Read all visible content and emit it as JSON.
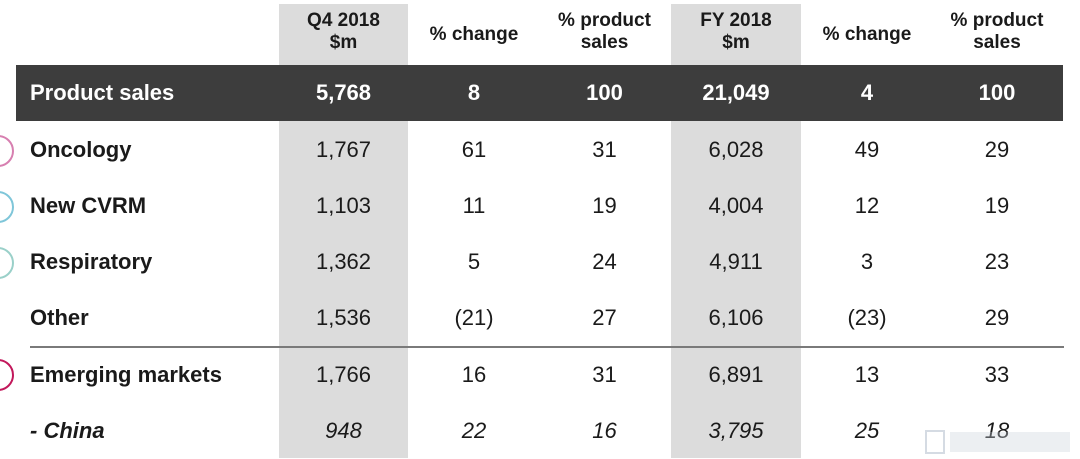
{
  "header": {
    "q4": "Q4 2018\n$m",
    "q4_change": "% change",
    "q4_product": "% product\nsales",
    "fy": "FY 2018\n$m",
    "fy_change": "% change",
    "fy_product": "% product\nsales"
  },
  "total": {
    "label": "Product sales",
    "values": [
      "5,768",
      "8",
      "100",
      "21,049",
      "4",
      "100"
    ]
  },
  "rows": [
    {
      "label": "Oncology",
      "values": [
        "1,767",
        "61",
        "31",
        "6,028",
        "49",
        "29"
      ]
    },
    {
      "label": "New CVRM",
      "values": [
        "1,103",
        "11",
        "19",
        "4,004",
        "12",
        "19"
      ]
    },
    {
      "label": "Respiratory",
      "values": [
        "1,362",
        "5",
        "24",
        "4,911",
        "3",
        "23"
      ]
    },
    {
      "label": "Other",
      "values": [
        "1,536",
        "(21)",
        "27",
        "6,106",
        "(23)",
        "29"
      ]
    },
    {
      "label": "Emerging markets",
      "values": [
        "1,766",
        "16",
        "31",
        "6,891",
        "13",
        "33"
      ]
    },
    {
      "label": "- China",
      "values": [
        "948",
        "22",
        "16",
        "3,795",
        "25",
        "18"
      ]
    }
  ],
  "colors": {
    "total_bg": "#3d3d3d",
    "column_shade": "#dcdcdc",
    "oncology_icon": "#d77fb0",
    "cvrm_icon": "#7fc6d9",
    "respiratory_icon": "#9ad0c9",
    "emerging_icon": "#c2185b"
  }
}
